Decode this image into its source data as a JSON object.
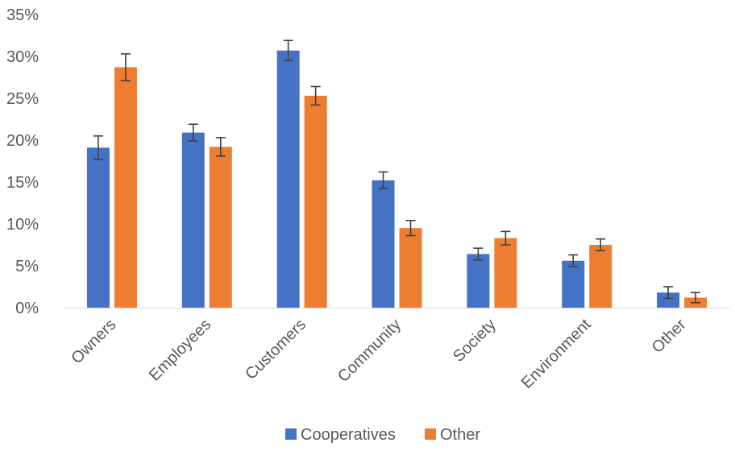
{
  "chart_data": {
    "type": "bar",
    "categories": [
      "Owners",
      "Employees",
      "Customers",
      "Community",
      "Society",
      "Environment",
      "Other"
    ],
    "series": [
      {
        "name": "Cooperatives",
        "color": "#4472C4",
        "values": [
          19.1,
          20.9,
          30.7,
          15.2,
          6.4,
          5.6,
          1.8
        ],
        "error": [
          1.4,
          1.0,
          1.2,
          1.0,
          0.7,
          0.7,
          0.7
        ]
      },
      {
        "name": "Other",
        "color": "#ED7D31",
        "values": [
          28.7,
          19.2,
          25.3,
          9.5,
          8.3,
          7.5,
          1.2
        ],
        "error": [
          1.6,
          1.1,
          1.1,
          0.9,
          0.8,
          0.7,
          0.6
        ]
      }
    ],
    "y_ticks": [
      "0%",
      "5%",
      "10%",
      "15%",
      "20%",
      "25%",
      "30%",
      "35%"
    ],
    "ylim": [
      0,
      35
    ],
    "y_unit": "%",
    "grid": false,
    "legend_position": "bottom",
    "title": "",
    "xlabel": "",
    "ylabel": ""
  }
}
